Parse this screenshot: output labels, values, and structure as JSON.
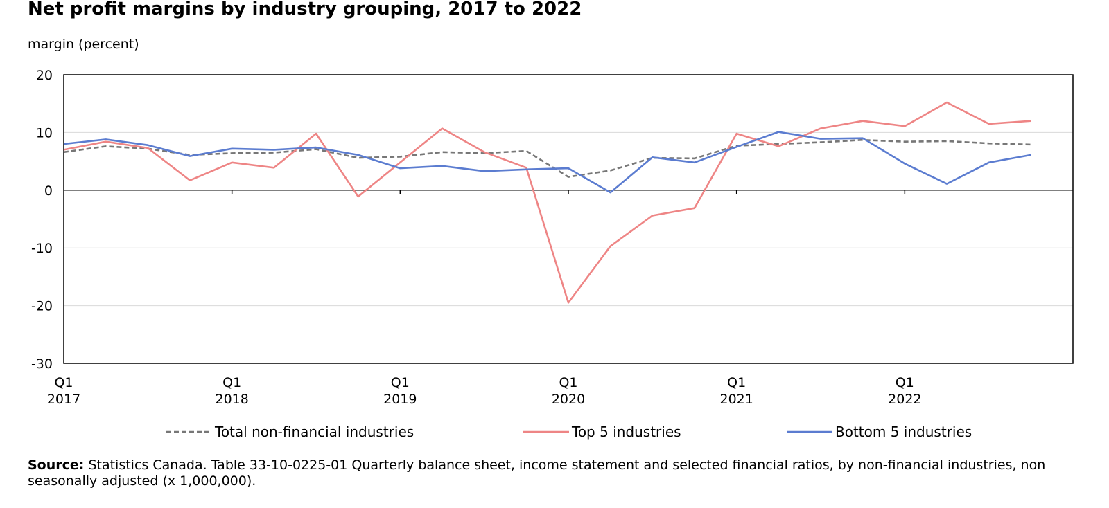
{
  "chart_data": {
    "type": "line",
    "title": "Net profit margins by industry grouping, 2017 to 2022",
    "ylabel": "margin (percent)",
    "ylim": [
      -30,
      20
    ],
    "yticks": [
      "20",
      "10",
      "0",
      "-10",
      "-20",
      "-30"
    ],
    "x": [
      "Q1 2017",
      "Q2 2017",
      "Q3 2017",
      "Q4 2017",
      "Q1 2018",
      "Q2 2018",
      "Q3 2018",
      "Q4 2018",
      "Q1 2019",
      "Q2 2019",
      "Q3 2019",
      "Q4 2019",
      "Q1 2020",
      "Q2 2020",
      "Q3 2020",
      "Q4 2020",
      "Q1 2021",
      "Q2 2021",
      "Q3 2021",
      "Q4 2021",
      "Q1 2022",
      "Q2 2022",
      "Q3 2022",
      "Q4 2022"
    ],
    "xtick_labels": [
      {
        "quarter": "Q1",
        "year": "2017"
      },
      {
        "quarter": "Q1",
        "year": "2018"
      },
      {
        "quarter": "Q1",
        "year": "2019"
      },
      {
        "quarter": "Q1",
        "year": "2020"
      },
      {
        "quarter": "Q1",
        "year": "2021"
      },
      {
        "quarter": "Q1",
        "year": "2022"
      }
    ],
    "grid": true,
    "legend_position": "bottom",
    "series": [
      {
        "name": "Total non-financial industries",
        "color": "#777777",
        "dash": true,
        "values": [
          6.6,
          7.6,
          7.2,
          6.1,
          6.4,
          6.5,
          7.1,
          5.6,
          5.8,
          6.6,
          6.4,
          6.8,
          2.3,
          3.4,
          5.6,
          5.5,
          7.7,
          8.0,
          8.3,
          8.7,
          8.4,
          8.5,
          8.1,
          7.9
        ]
      },
      {
        "name": "Top 5 industries",
        "color": "#ee8585",
        "dash": false,
        "values": [
          7.0,
          8.4,
          7.3,
          1.7,
          4.8,
          3.9,
          9.8,
          -1.1,
          4.8,
          10.7,
          6.6,
          3.9,
          -19.5,
          -9.7,
          -4.4,
          -3.1,
          9.8,
          7.6,
          10.7,
          12.0,
          11.1,
          15.2,
          11.5,
          12.0
        ]
      },
      {
        "name": "Bottom 5 industries",
        "color": "#5b7cd0",
        "dash": false,
        "values": [
          8.0,
          8.8,
          7.8,
          5.9,
          7.2,
          7.0,
          7.4,
          6.1,
          3.8,
          4.2,
          3.3,
          3.6,
          3.8,
          -0.4,
          5.7,
          4.8,
          7.5,
          10.1,
          8.9,
          9.0,
          4.6,
          1.1,
          4.8,
          6.1
        ]
      }
    ]
  },
  "source": {
    "label": "Source:",
    "text": "Statistics Canada. Table 33-10-0225-01 Quarterly balance sheet, income statement and selected financial ratios, by non-financial industries, non seasonally adjusted (x 1,000,000)."
  }
}
